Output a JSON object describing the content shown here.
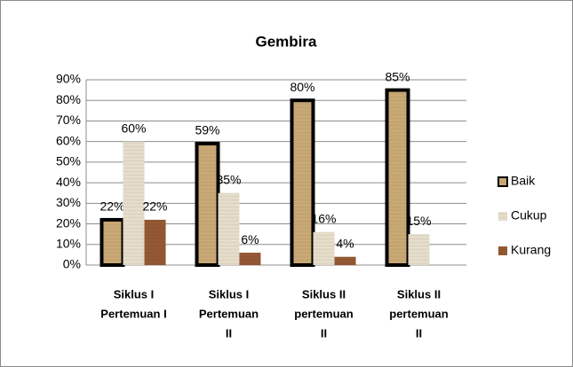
{
  "chart_data": {
    "type": "bar",
    "title": "Gembira",
    "categories": [
      [
        "Siklus I",
        "Pertemuan I"
      ],
      [
        "Siklus I",
        "Pertemuan",
        "II"
      ],
      [
        "Siklus II",
        "pertemuan",
        "II"
      ],
      [
        "Siklus II",
        "pertemuan",
        "II"
      ]
    ],
    "series": [
      {
        "name": "Baik",
        "color": "#c9a56b",
        "values": [
          22,
          59,
          80,
          85
        ],
        "value_labels": [
          "22%",
          "59%",
          "80%",
          "85%"
        ]
      },
      {
        "name": "Cukup",
        "color": "#e9dfcb",
        "values": [
          60,
          35,
          16,
          15
        ],
        "value_labels": [
          "60%",
          "35%",
          "16%",
          "15%"
        ]
      },
      {
        "name": "Kurang",
        "color": "#8e4b22",
        "values": [
          22,
          6,
          4,
          null
        ],
        "value_labels": [
          "22%",
          "6%",
          "4%",
          null
        ]
      }
    ],
    "ylim": [
      0,
      90
    ],
    "yticks": [
      {
        "value": 0,
        "label": "0%"
      },
      {
        "value": 10,
        "label": "10%"
      },
      {
        "value": 20,
        "label": "20%"
      },
      {
        "value": 30,
        "label": "30%"
      },
      {
        "value": 40,
        "label": "40%"
      },
      {
        "value": 50,
        "label": "50%"
      },
      {
        "value": 60,
        "label": "60%"
      },
      {
        "value": 70,
        "label": "70%"
      },
      {
        "value": 80,
        "label": "80%"
      },
      {
        "value": 90,
        "label": "90%"
      }
    ],
    "grid": true,
    "legend": "right"
  }
}
